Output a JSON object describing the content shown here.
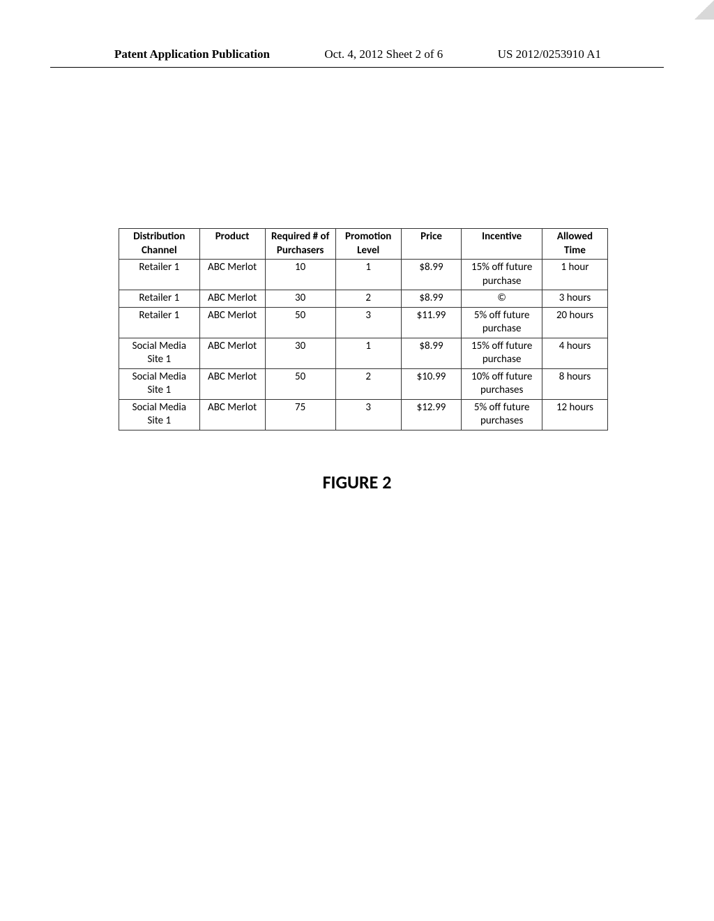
{
  "header": {
    "left": "Patent Application Publication",
    "center": "Oct. 4, 2012  Sheet 2 of 6",
    "right": "US 2012/0253910 A1"
  },
  "table": {
    "columns": [
      "Distribution Channel",
      "Product",
      "Required # of Purchasers",
      "Promotion Level",
      "Price",
      "Incentive",
      "Allowed Time"
    ],
    "col_widths": [
      "16%",
      "13%",
      "14%",
      "13%",
      "12%",
      "16%",
      "13%"
    ],
    "header_fontsize": 15,
    "body_fontsize": 15,
    "header_bg": "#ffffff",
    "border_color": "#333333",
    "rows": [
      {
        "channel": "Retailer 1",
        "product": "ABC Merlot",
        "required": "10",
        "level": "1",
        "price": "$8.99",
        "incentive": "15% off future purchase",
        "time": "1 hour"
      },
      {
        "channel": "Retailer 1",
        "product": "ABC Merlot",
        "required": "30",
        "level": "2",
        "price": "$8.99",
        "incentive": "©",
        "time": "3 hours"
      },
      {
        "channel": "Retailer 1",
        "product": "ABC Merlot",
        "required": "50",
        "level": "3",
        "price": "$11.99",
        "incentive": "5% off future purchase",
        "time": "20 hours"
      },
      {
        "channel": "Social Media Site 1",
        "product": "ABC Merlot",
        "required": "30",
        "level": "1",
        "price": "$8.99",
        "incentive": "15% off future purchase",
        "time": "4 hours"
      },
      {
        "channel": "Social Media Site 1",
        "product": "ABC Merlot",
        "required": "50",
        "level": "2",
        "price": "$10.99",
        "incentive": "10% off future purchases",
        "time": "8 hours"
      },
      {
        "channel": "Social Media Site 1",
        "product": "ABC Merlot",
        "required": "75",
        "level": "3",
        "price": "$12.99",
        "incentive": "5% off future purchases",
        "time": "12 hours"
      }
    ]
  },
  "figure_label": "FIGURE 2"
}
